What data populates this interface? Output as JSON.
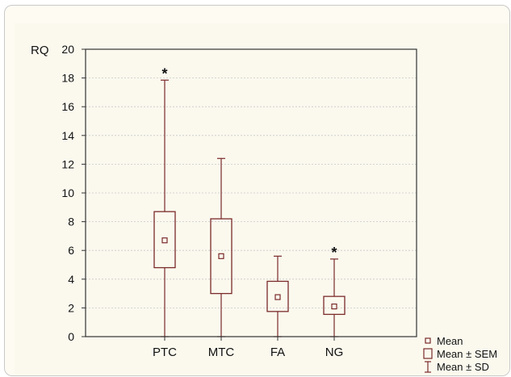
{
  "chart_data": {
    "type": "box",
    "title": "",
    "ylabel": "RQ",
    "xlabel": "",
    "ylim": [
      0,
      20
    ],
    "yticks": [
      0,
      2,
      4,
      6,
      8,
      10,
      12,
      14,
      16,
      18,
      20
    ],
    "categories": [
      "PTC",
      "MTC",
      "FA",
      "NG"
    ],
    "mean": [
      6.7,
      5.6,
      2.75,
      2.1
    ],
    "mean_minus_sem": [
      4.8,
      3.0,
      1.75,
      1.55
    ],
    "mean_plus_sem": [
      8.7,
      8.2,
      3.85,
      2.8
    ],
    "mean_minus_sd": [
      0.0,
      0.0,
      0.0,
      0.0
    ],
    "mean_plus_sd": [
      17.85,
      12.4,
      5.6,
      5.4
    ],
    "annotations": [
      "*",
      "",
      "",
      "*"
    ],
    "legend": [
      "Mean",
      "Mean ± SEM",
      "Mean ± SD"
    ],
    "grid": true,
    "colors": {
      "box": "#7a2a2a",
      "grid": "#c8c8c8",
      "axis": "#333333"
    }
  }
}
